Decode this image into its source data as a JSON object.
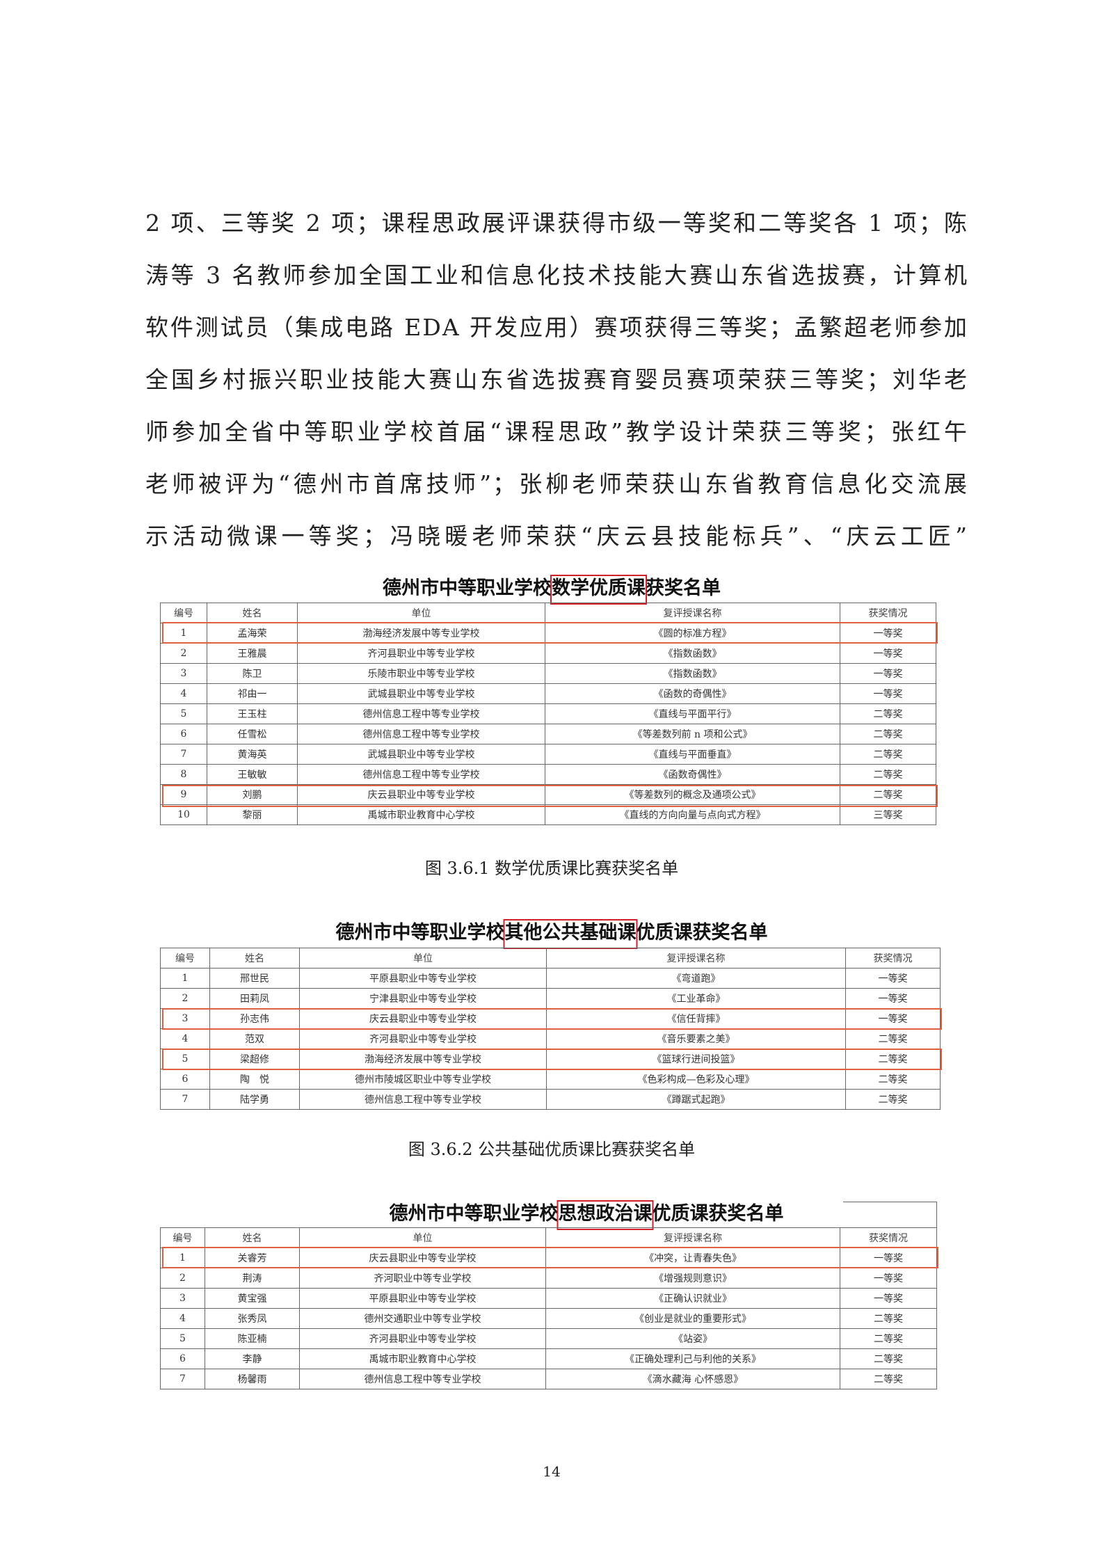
{
  "paragraph": [
    "2 项、三等奖 2 项；课程思政展评课获得市级一等奖和二等奖各 1 项；陈",
    "涛等 3 名教师参加全国工业和信息化技术技能大赛山东省选拔赛，计算机",
    "软件测试员（集成电路 EDA 开发应用）赛项获得三等奖；孟繁超老师参加",
    "全国乡村振兴职业技能大赛山东省选拔赛育婴员赛项荣获三等奖；刘华老",
    "师参加全省中等职业学校首届“课程思政”教学设计荣获三等奖；张红午",
    "老师被评为“德州市首席技师”；张柳老师荣获山东省教育信息化交流展",
    "示活动微课一等奖；冯晓暖老师荣获“庆云县技能标兵”、“庆云工匠”"
  ],
  "headers": [
    "编号",
    "姓名",
    "单位",
    "复评授课名称",
    "获奖情况"
  ],
  "tables": [
    {
      "title_pre": "德州市中等职业学校",
      "title_hl": "数学优质课",
      "title_post": "获奖名单",
      "caption": "图 3.6.1  数学优质课比赛获奖名单",
      "highlight_rows": [
        1,
        9
      ],
      "rows": [
        [
          "1",
          "孟海荣",
          "渤海经济发展中等专业学校",
          "《圆的标准方程》",
          "一等奖"
        ],
        [
          "2",
          "王雅晨",
          "齐河县职业中等专业学校",
          "《指数函数》",
          "一等奖"
        ],
        [
          "3",
          "陈卫",
          "乐陵市职业中等专业学校",
          "《指数函数》",
          "一等奖"
        ],
        [
          "4",
          "祁由一",
          "武城县职业中等专业学校",
          "《函数的奇偶性》",
          "一等奖"
        ],
        [
          "5",
          "王玉柱",
          "德州信息工程中等专业学校",
          "《直线与平面平行》",
          "二等奖"
        ],
        [
          "6",
          "任雪松",
          "德州信息工程中等专业学校",
          "《等差数列前 n 项和公式》",
          "二等奖"
        ],
        [
          "7",
          "黄海英",
          "武城县职业中等专业学校",
          "《直线与平面垂直》",
          "二等奖"
        ],
        [
          "8",
          "王敏敏",
          "德州信息工程中等专业学校",
          "《函数奇偶性》",
          "二等奖"
        ],
        [
          "9",
          "刘鹏",
          "庆云县职业中等专业学校",
          "《等差数列的概念及通项公式》",
          "二等奖"
        ],
        [
          "10",
          "黎丽",
          "禹城市职业教育中心学校",
          "《直线的方向向量与点向式方程》",
          "三等奖"
        ]
      ]
    },
    {
      "title_pre": "德州市中等职业学校",
      "title_hl": "其他公共基础课",
      "title_post": "优质课获奖名单",
      "caption": "图 3.6.2  公共基础优质课比赛获奖名单",
      "highlight_rows": [
        3,
        5
      ],
      "rows": [
        [
          "1",
          "邢世民",
          "平原县职业中等专业学校",
          "《弯道跑》",
          "一等奖"
        ],
        [
          "2",
          "田莉凤",
          "宁津县职业中等专业学校",
          "《工业革命》",
          "一等奖"
        ],
        [
          "3",
          "孙志伟",
          "庆云县职业中等专业学校",
          "《信任背摔》",
          "一等奖"
        ],
        [
          "4",
          "范双",
          "齐河县职业中等专业学校",
          "《音乐要素之美》",
          "二等奖"
        ],
        [
          "5",
          "梁超修",
          "渤海经济发展中等专业学校",
          "《篮球行进间投篮》",
          "二等奖"
        ],
        [
          "6",
          "陶　悦",
          "德州市陵城区职业中等专业学校",
          "《色彩构成—色彩及心理》",
          "二等奖"
        ],
        [
          "7",
          "陆学勇",
          "德州信息工程中等专业学校",
          "《蹲踞式起跑》",
          "二等奖"
        ]
      ]
    },
    {
      "title_pre": "德州市中等职业学校",
      "title_hl": "思想政治课",
      "title_post": "优质课获奖名单",
      "caption": "",
      "highlight_rows": [
        1
      ],
      "rows": [
        [
          "1",
          "关睿芳",
          "庆云县职业中等专业学校",
          "《冲突，让青春失色》",
          "一等奖"
        ],
        [
          "2",
          "荆涛",
          "齐河职业中等专业学校",
          "《增强规则意识》",
          "一等奖"
        ],
        [
          "3",
          "黄宝强",
          "平原县职业中等专业学校",
          "《正确认识就业》",
          "一等奖"
        ],
        [
          "4",
          "张秀凤",
          "德州交通职业中等专业学校",
          "《创业是就业的重要形式》",
          "二等奖"
        ],
        [
          "5",
          "陈亚楠",
          "齐河县职业中等专业学校",
          "《站姿》",
          "二等奖"
        ],
        [
          "6",
          "李静",
          "禹城市职业教育中心学校",
          "《正确处理利己与利他的关系》",
          "二等奖"
        ],
        [
          "7",
          "杨馨雨",
          "德州信息工程中等专业学校",
          "《滴水藏海 心怀感恩》",
          "二等奖"
        ]
      ]
    }
  ],
  "page_number": "14",
  "colors": {
    "highlight_title": "#d0202a",
    "highlight_row": "#e0603e"
  }
}
